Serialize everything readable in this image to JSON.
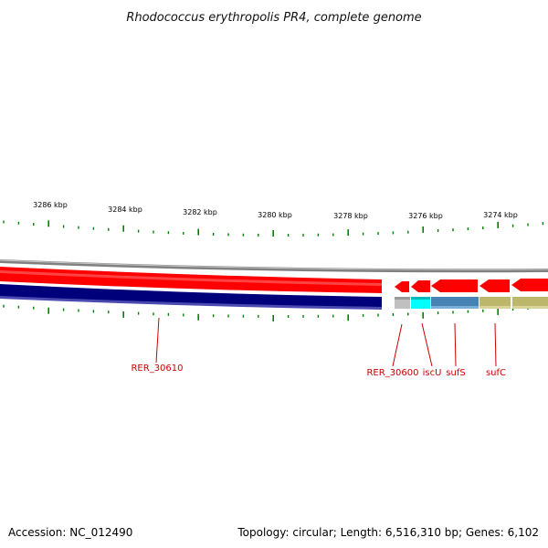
{
  "title": "Rhodococcus erythropolis PR4, complete genome",
  "scale_labels": [
    "3286 kbp",
    "3284 kbp",
    "3282 kbp",
    "3280 kbp",
    "3278 kbp",
    "3276 kbp",
    "3274 kbp"
  ],
  "genes": [
    {
      "name": "RER_30610",
      "color": "#cc0000"
    },
    {
      "name": "RER_30600",
      "color": "#cc0000"
    },
    {
      "name": "iscU",
      "color": "#cc0000"
    },
    {
      "name": "sufS",
      "color": "#cc0000"
    },
    {
      "name": "sufC",
      "color": "#cc0000"
    }
  ],
  "colors": {
    "forward_strand": "#ff0000",
    "reverse_strand": "#000080",
    "backbone": "#808080",
    "ticks": "#008000",
    "gene_iscU": "#00ffff",
    "gene_sufS": "#4682b4",
    "gene_sufC": "#bdb76b",
    "gene_RER_30600": "#c0c0c0"
  },
  "footer": {
    "accession": "Accession: NC_012490",
    "summary": "Topology: circular; Length: 6,516,310 bp; Genes: 6,102"
  }
}
